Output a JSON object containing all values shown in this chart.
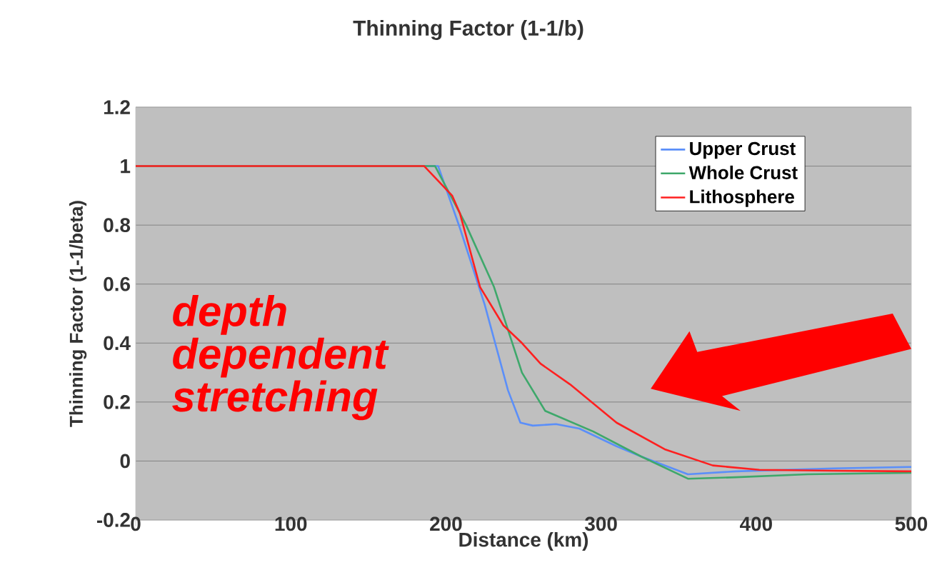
{
  "chart_data": {
    "type": "line",
    "title": "Thinning Factor (1-1/b)",
    "xlabel": "Distance (km)",
    "ylabel": "Thinning Factor (1-1/beta)",
    "annotations": [
      "depth dependent stretching"
    ],
    "series": [
      {
        "name": "Upper Crust",
        "color": "#5b8ff9",
        "x": [
          0,
          195,
          209,
          225,
          240,
          248,
          256,
          271,
          286,
          310,
          326,
          356,
          387,
          450,
          500
        ],
        "values": [
          1,
          1,
          0.79,
          0.53,
          0.24,
          0.13,
          0.12,
          0.125,
          0.11,
          0.05,
          0.015,
          -0.045,
          -0.035,
          -0.025,
          -0.02
        ]
      },
      {
        "name": "Whole Crust",
        "color": "#3ea86b",
        "x": [
          0,
          193,
          213,
          231,
          249,
          264,
          295,
          326,
          356,
          387,
          433,
          500
        ],
        "values": [
          1,
          1,
          0.8,
          0.59,
          0.3,
          0.17,
          0.1,
          0.015,
          -0.06,
          -0.055,
          -0.045,
          -0.04
        ]
      },
      {
        "name": "Lithosphere",
        "color": "#ff2020",
        "x": [
          0,
          186,
          204,
          209,
          222,
          237,
          249,
          261,
          280,
          310,
          341,
          372,
          402,
          450,
          500
        ],
        "values": [
          1,
          1,
          0.9,
          0.84,
          0.59,
          0.46,
          0.4,
          0.33,
          0.26,
          0.13,
          0.04,
          -0.015,
          -0.03,
          -0.033,
          -0.035
        ]
      }
    ],
    "xlim": [
      0,
      500
    ],
    "ylim": [
      -0.2,
      1.2
    ],
    "xticks": [
      0,
      100,
      200,
      300,
      400,
      500
    ],
    "yticks": [
      -0.2,
      0,
      0.2,
      0.4,
      0.6,
      0.8,
      1,
      1.2
    ],
    "grid": "y",
    "legend": "top right",
    "marker": "none",
    "line_style": "solid"
  }
}
